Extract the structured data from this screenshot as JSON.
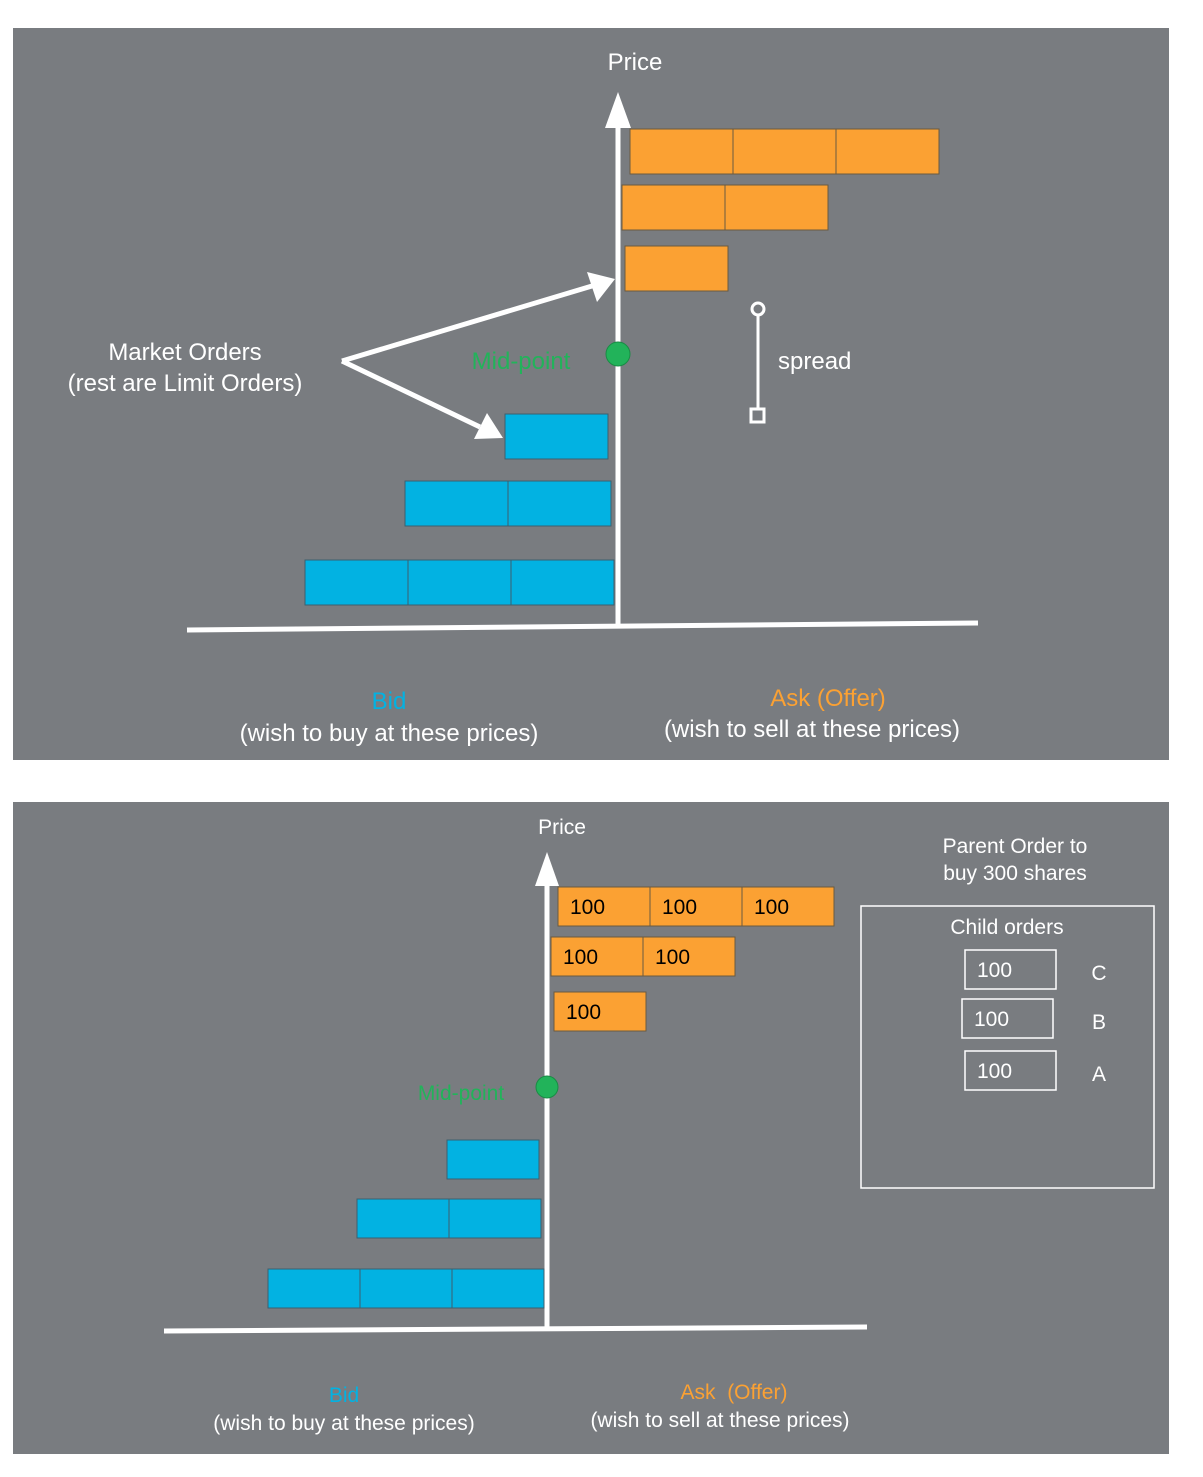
{
  "colors": {
    "panel_bg": "#797c80",
    "ask": "#fba133",
    "bid": "#02b2e2",
    "mid": "#22b35a",
    "axis": "#ffffff",
    "text": "#ffffff"
  },
  "top": {
    "price_label": "Price",
    "market_orders_label": "Market Orders",
    "rest_limit_label": "(rest are Limit Orders)",
    "midpoint_label": "Mid-point",
    "spread_label": "spread",
    "bid_title": "Bid",
    "bid_subtitle": "(wish to buy at these prices)",
    "ask_title": "Ask (Offer)",
    "ask_subtitle": "(wish to sell at these prices)",
    "ask_levels": [
      3,
      2,
      1
    ],
    "bid_levels": [
      1,
      2,
      3
    ]
  },
  "bottom": {
    "price_label": "Price",
    "midpoint_label": "Mid-point",
    "bid_title": "Bid",
    "bid_subtitle": "(wish to buy at these prices)",
    "ask_title": "Ask  (Offer)",
    "ask_subtitle": "(wish to sell at these prices)",
    "ask_levels": [
      [
        "100",
        "100",
        "100"
      ],
      [
        "100",
        "100"
      ],
      [
        "100"
      ]
    ],
    "bid_levels": [
      1,
      2,
      3
    ],
    "parent_order_line1": "Parent Order to",
    "parent_order_line2": "buy 300 shares",
    "child_orders_title": "Child orders",
    "child_orders": [
      {
        "qty": "100",
        "label": "C"
      },
      {
        "qty": "100",
        "label": "B"
      },
      {
        "qty": "100",
        "label": "A"
      }
    ]
  }
}
